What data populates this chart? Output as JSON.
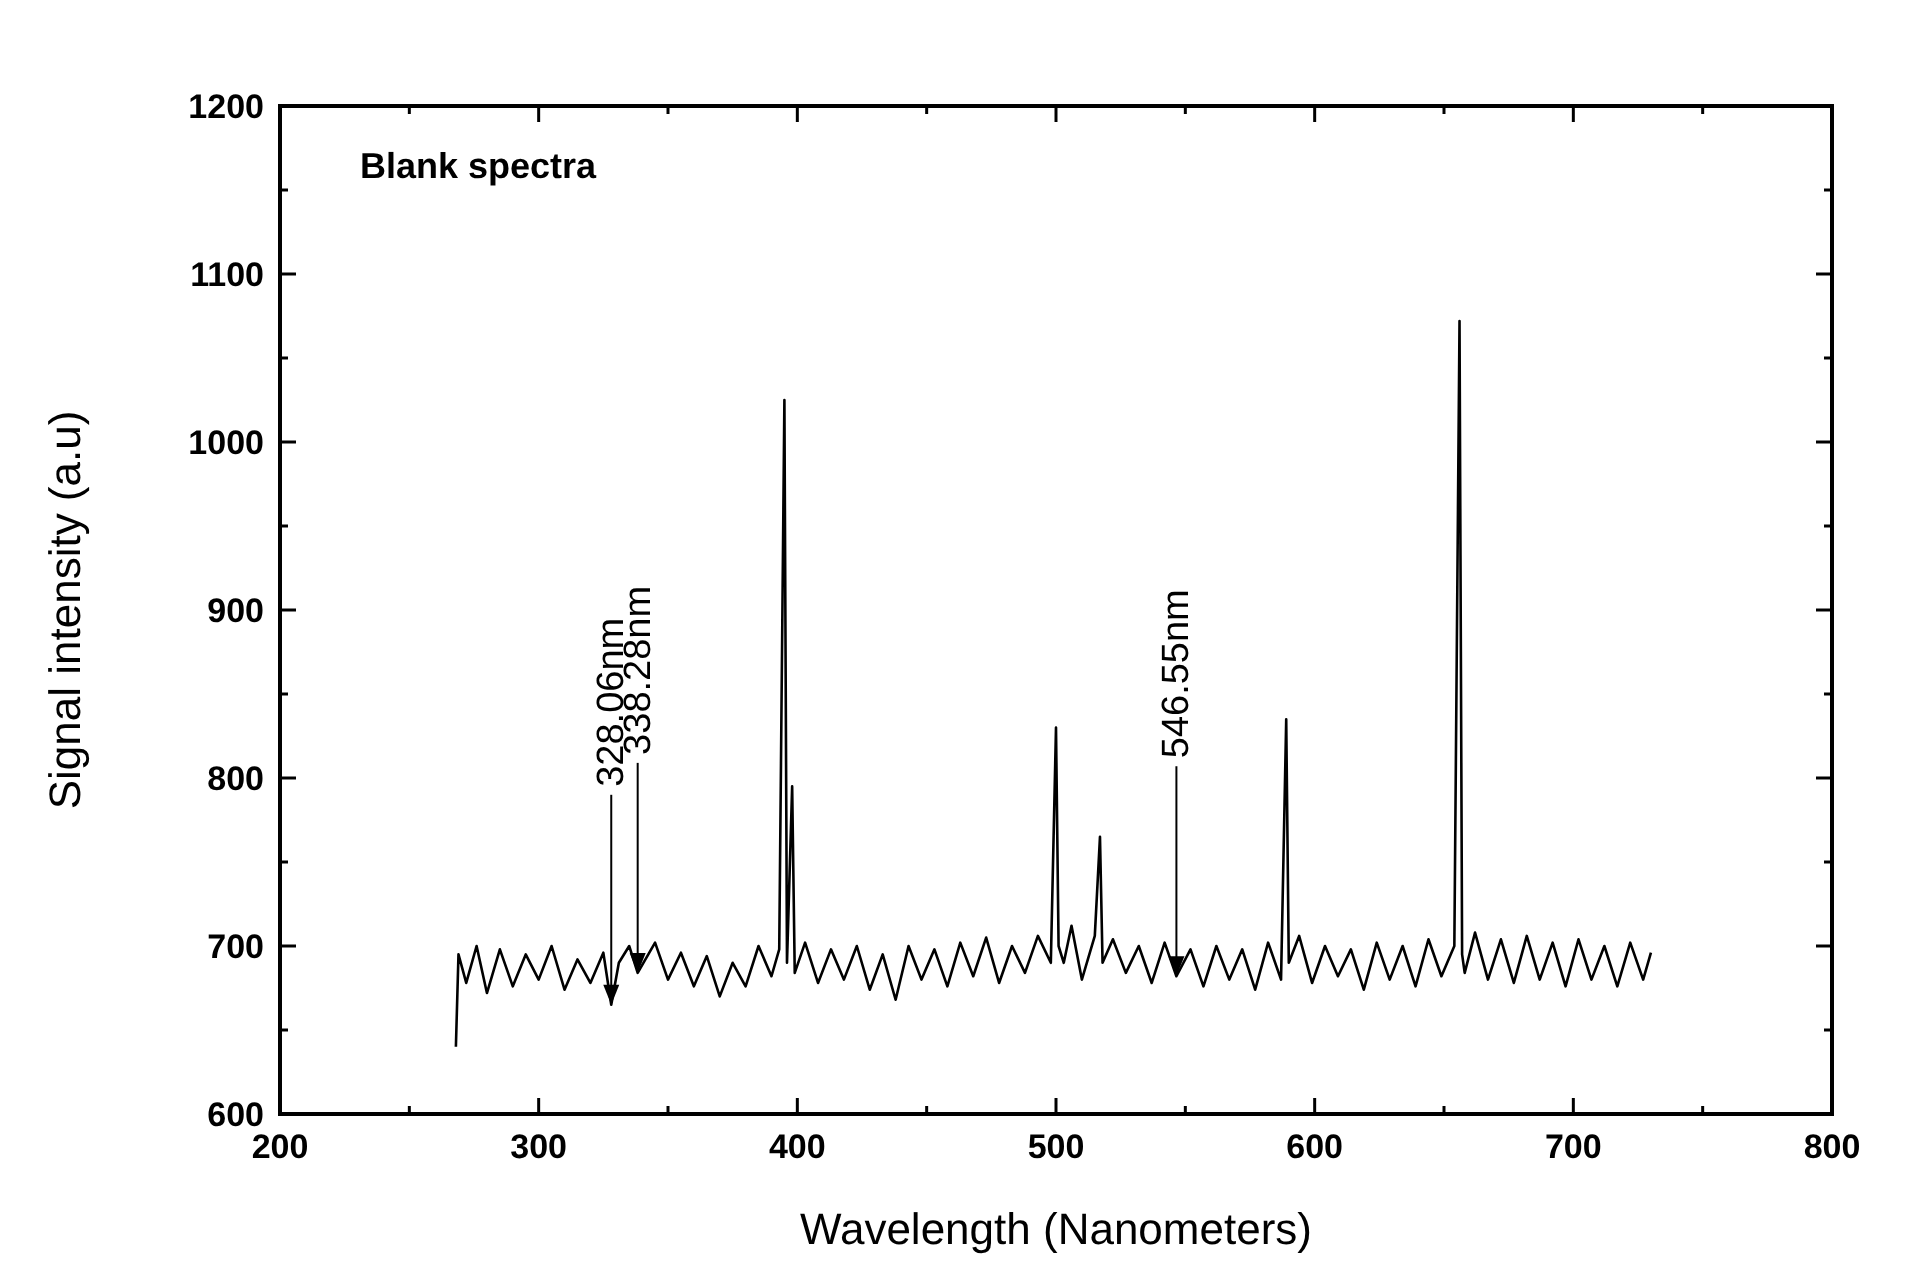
{
  "chart_data": {
    "type": "line",
    "title": "Blank spectra",
    "xlabel": "Wavelength (Nanometers)",
    "ylabel": "Signal intensity (a.u)",
    "x": [
      268,
      269,
      272,
      276,
      280,
      285,
      290,
      295,
      300,
      305,
      310,
      315,
      320,
      325,
      328.06,
      331,
      335,
      338.28,
      345,
      350,
      355,
      360,
      365,
      370,
      375,
      380,
      385,
      390,
      393,
      395,
      396,
      398,
      399,
      403,
      408,
      413,
      418,
      423,
      428,
      433,
      438,
      443,
      448,
      453,
      458,
      463,
      468,
      473,
      478,
      483,
      488,
      493,
      498,
      500,
      501,
      503,
      506,
      510,
      515,
      517,
      518,
      522,
      527,
      532,
      537,
      542,
      546.55,
      552,
      557,
      562,
      567,
      572,
      577,
      582,
      587,
      589,
      590,
      594,
      599,
      604,
      609,
      614,
      619,
      624,
      629,
      634,
      639,
      644,
      649,
      654,
      656,
      657,
      658,
      662,
      667,
      672,
      677,
      682,
      687,
      692,
      697,
      702,
      707,
      712,
      717,
      722,
      727,
      730
    ],
    "series": [
      {
        "color": "#000000",
        "values": [
          640,
          695,
          678,
          700,
          672,
          698,
          676,
          695,
          680,
          700,
          674,
          692,
          678,
          696,
          665,
          690,
          700,
          684,
          702,
          680,
          696,
          676,
          694,
          670,
          690,
          676,
          700,
          682,
          698,
          1025,
          690,
          795,
          684,
          702,
          678,
          698,
          680,
          700,
          674,
          695,
          668,
          700,
          680,
          698,
          676,
          702,
          682,
          705,
          678,
          700,
          684,
          706,
          690,
          830,
          700,
          690,
          712,
          680,
          706,
          765,
          690,
          704,
          684,
          700,
          678,
          702,
          682,
          698,
          676,
          700,
          680,
          698,
          674,
          702,
          680,
          835,
          690,
          706,
          678,
          700,
          682,
          698,
          674,
          702,
          680,
          700,
          676,
          704,
          682,
          700,
          1072,
          695,
          684,
          708,
          680,
          704,
          678,
          706,
          680,
          702,
          676,
          704,
          680,
          700,
          676,
          702,
          680,
          696
        ]
      }
    ],
    "xlim": [
      200,
      800
    ],
    "ylim": [
      600,
      1200
    ],
    "xticks": [
      200,
      {
        "value": 250,
        "label": null
      },
      300,
      {
        "value": 350,
        "label": null
      },
      400,
      {
        "value": 450,
        "label": null
      },
      500,
      {
        "value": 550,
        "label": null
      },
      600,
      {
        "value": 650,
        "label": null
      },
      700,
      {
        "value": 750,
        "label": null
      },
      800
    ],
    "yticks": [
      600,
      {
        "value": 650,
        "label": null
      },
      700,
      {
        "value": 750,
        "label": null
      },
      800,
      {
        "value": 850,
        "label": null
      },
      900,
      {
        "value": 950,
        "label": null
      },
      1000,
      {
        "value": 1050,
        "label": null
      },
      1100,
      {
        "value": 1150,
        "label": null
      },
      1200
    ],
    "grid": false,
    "marker": "none",
    "line_style": "solid",
    "annotations": [
      {
        "text": "328.06nm",
        "x": 328.06,
        "y": 665
      },
      {
        "text": "338.28nm",
        "x": 338.28,
        "y": 684
      },
      {
        "text": "546.55nm",
        "x": 546.55,
        "y": 682
      }
    ]
  }
}
